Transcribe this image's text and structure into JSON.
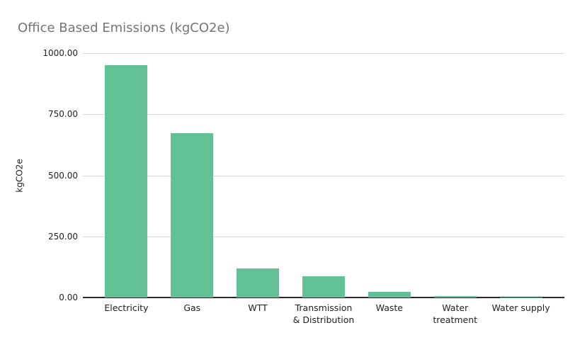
{
  "chart_data": {
    "type": "bar",
    "title": "Office Based Emissions (kgCO2e)",
    "xlabel": "",
    "ylabel": "kgCO2e",
    "categories": [
      "Electricity",
      "Gas",
      "WTT",
      "Transmission & Distribution",
      "Waste",
      "Water treatment",
      "Water supply"
    ],
    "category_display_lines": [
      [
        "Electricity"
      ],
      [
        "Gas"
      ],
      [
        "WTT"
      ],
      [
        "Transmission",
        "& Distribution"
      ],
      [
        "Waste"
      ],
      [
        "Water",
        "treatment"
      ],
      [
        "Water supply"
      ]
    ],
    "values": [
      950,
      673,
      118,
      87,
      23,
      6,
      1
    ],
    "ylim": [
      0,
      1000
    ],
    "yticks": [
      {
        "value": 0,
        "label": "0.00"
      },
      {
        "value": 250,
        "label": "250.00"
      },
      {
        "value": 500,
        "label": "500.00"
      },
      {
        "value": 750,
        "label": "750.00"
      },
      {
        "value": 1000,
        "label": "1000.00"
      }
    ],
    "grid": true,
    "legend_position": "none",
    "series_name": "kgCO2e"
  },
  "colors": {
    "background": "#ffffff",
    "title_text": "#757575",
    "axis_text": "#1f1f1f",
    "gridline": "#d9d9d9",
    "axis_line": "#2a2a2a",
    "bar": "#63c295"
  }
}
